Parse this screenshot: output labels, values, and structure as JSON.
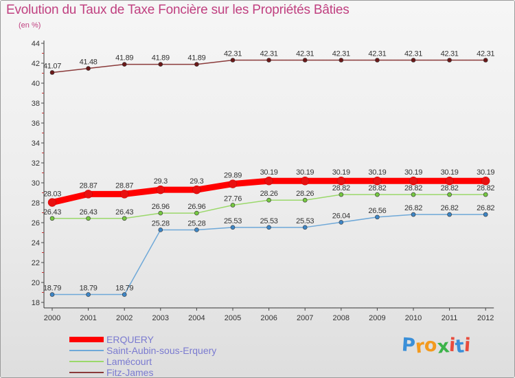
{
  "title": "Evolution du Taux de Taxe Foncière sur les Propriétés Bâties",
  "subtitle": "(en %)",
  "logo": {
    "text": "Proxiti",
    "colors": [
      "#3a8fd8",
      "#f39a1e",
      "#f39a1e",
      "#3cb34a",
      "#e84c3d",
      "#3a8fd8",
      "#e84c3d"
    ]
  },
  "chart_data": {
    "type": "line",
    "title": "Evolution du Taux de Taxe Foncière sur les Propriétés Bâties",
    "ylabel": "(en %)",
    "xlabel": "",
    "ylim": [
      18,
      44
    ],
    "yticks": [
      18,
      20,
      22,
      24,
      26,
      28,
      30,
      32,
      34,
      36,
      38,
      40,
      42,
      44
    ],
    "categories": [
      "2000",
      "2001",
      "2002",
      "2003",
      "2004",
      "2005",
      "2006",
      "2007",
      "2008",
      "2009",
      "2010",
      "2011",
      "2012"
    ],
    "legend_position": "bottom-left",
    "series": [
      {
        "name": "ERQUERY",
        "color": "#ff0000",
        "marker": "#e81010",
        "emphasis": true,
        "values": [
          28.03,
          28.87,
          28.87,
          29.3,
          29.3,
          29.89,
          30.19,
          30.19,
          30.19,
          30.19,
          30.19,
          30.19,
          30.19
        ],
        "labels": [
          "28.03",
          "28.87",
          "28.87",
          "29.3",
          "29.3",
          "29.89",
          "30.19",
          "30.19",
          "30.19",
          "30.19",
          "30.19",
          "30.19",
          "30.19"
        ]
      },
      {
        "name": "Saint-Aubin-sous-Erquery",
        "color": "#6ea8d8",
        "marker": "#3e86c6",
        "emphasis": false,
        "values": [
          18.79,
          18.79,
          18.79,
          25.28,
          25.28,
          25.53,
          25.53,
          25.53,
          26.04,
          26.56,
          26.82,
          26.82,
          26.82
        ],
        "labels": [
          "18.79",
          "18.79",
          "18.79",
          "25.28",
          "25.28",
          "25.53",
          "25.53",
          "25.53",
          "26.04",
          "26.56",
          "26.82",
          "26.82",
          "26.82"
        ]
      },
      {
        "name": "Lamécourt",
        "color": "#9ad86a",
        "marker": "#76c842",
        "emphasis": false,
        "values": [
          26.43,
          26.43,
          26.43,
          26.96,
          26.96,
          27.76,
          28.26,
          28.26,
          28.82,
          28.82,
          28.82,
          28.82,
          28.82
        ],
        "labels": [
          "26.43",
          "26.43",
          "26.43",
          "26.96",
          "26.96",
          "27.76",
          "28.26",
          "28.26",
          "28.82",
          "28.82",
          "28.82",
          "28.82",
          "28.82"
        ]
      },
      {
        "name": "Fitz-James",
        "color": "#8a3a3a",
        "marker": "#6a1818",
        "emphasis": false,
        "values": [
          41.07,
          41.48,
          41.89,
          41.89,
          41.89,
          42.31,
          42.31,
          42.31,
          42.31,
          42.31,
          42.31,
          42.31,
          42.31
        ],
        "labels": [
          "41.07",
          "41.48",
          "41.89",
          "41.89",
          "41.89",
          "42.31",
          "42.31",
          "42.31",
          "42.31",
          "42.31",
          "42.31",
          "42.31",
          "42.31"
        ]
      }
    ]
  }
}
